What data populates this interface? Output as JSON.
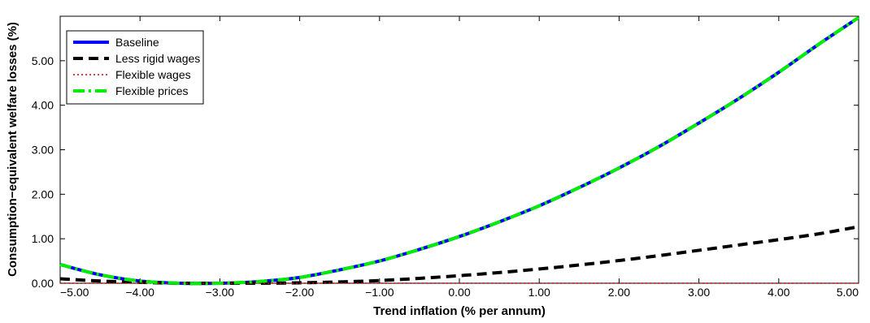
{
  "chart_data": {
    "type": "line",
    "xlabel": "Trend inflation (% per annum)",
    "ylabel": "Consumption−equivalent welfare losses (%)",
    "xlim": [
      -5,
      5
    ],
    "ylim": [
      0,
      6
    ],
    "xticks": [
      -5,
      -4,
      -3,
      -2,
      -1,
      0,
      1,
      2,
      3,
      4,
      5
    ],
    "xtick_labels": [
      "−5.00",
      "−4.00",
      "−3.00",
      "−2.00",
      "−1.00",
      "0.00",
      "1.00",
      "2.00",
      "3.00",
      "4.00",
      "5.00"
    ],
    "yticks": [
      0,
      1,
      2,
      3,
      4,
      5
    ],
    "ytick_labels": [
      "0.00",
      "1.00",
      "2.00",
      "3.00",
      "4.00",
      "5.00"
    ],
    "grid": false,
    "legend_position": "top-left",
    "x": [
      -5,
      -4.5,
      -4,
      -3.5,
      -3,
      -2.5,
      -2,
      -1.5,
      -1,
      -0.5,
      0,
      0.5,
      1,
      1.5,
      2,
      2.5,
      3,
      3.5,
      4,
      4.5,
      5
    ],
    "series": [
      {
        "name": "Baseline",
        "color": "#0000ff",
        "style": "solid",
        "values": [
          0.42,
          0.19,
          0.05,
          0.0,
          0.0,
          0.04,
          0.13,
          0.3,
          0.5,
          0.76,
          1.05,
          1.38,
          1.74,
          2.15,
          2.59,
          3.07,
          3.6,
          4.15,
          4.74,
          5.37,
          5.97
        ]
      },
      {
        "name": "Less rigid wages",
        "color": "#000000",
        "style": "dashed",
        "values": [
          0.1,
          0.05,
          0.02,
          0.0,
          0.0,
          0.0,
          0.01,
          0.03,
          0.06,
          0.11,
          0.17,
          0.24,
          0.32,
          0.41,
          0.51,
          0.62,
          0.74,
          0.86,
          0.98,
          1.11,
          1.27
        ]
      },
      {
        "name": "Flexible wages",
        "color": "#cc0000",
        "style": "dotted",
        "values": [
          0.0,
          0.0,
          0.0,
          0.0,
          0.0,
          0.0,
          0.0,
          0.0,
          0.0,
          0.0,
          0.0,
          0.0,
          0.0,
          0.0,
          0.0,
          0.0,
          0.0,
          0.0,
          0.0,
          0.0,
          0.0
        ]
      },
      {
        "name": "Flexible prices",
        "color": "#00ee00",
        "style": "dashdot",
        "values": [
          0.42,
          0.19,
          0.05,
          0.0,
          0.0,
          0.04,
          0.13,
          0.3,
          0.5,
          0.76,
          1.05,
          1.38,
          1.74,
          2.15,
          2.59,
          3.07,
          3.6,
          4.15,
          4.74,
          5.37,
          5.97
        ]
      }
    ]
  }
}
